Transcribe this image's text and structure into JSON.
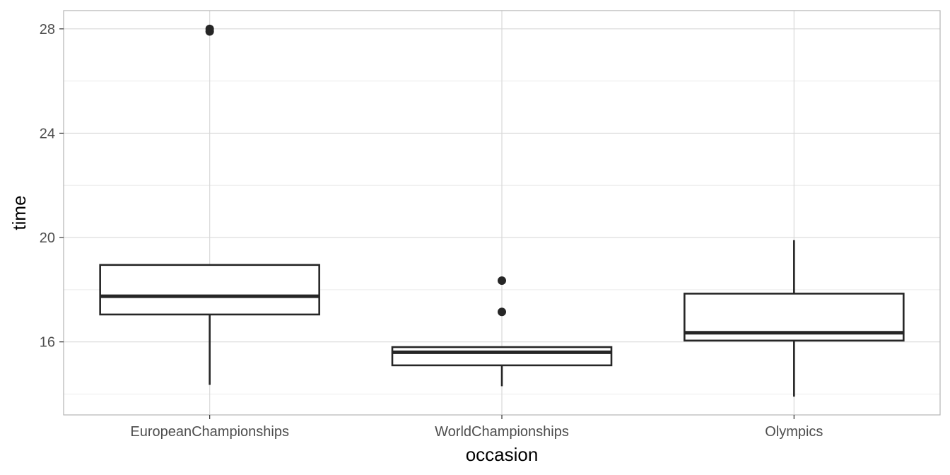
{
  "chart_data": {
    "type": "box",
    "xlabel": "occasion",
    "ylabel": "time",
    "categories": [
      "EuropeanChampionships",
      "WorldChampionships",
      "Olympics"
    ],
    "ylim": [
      13.2,
      28.7
    ],
    "yticks": [
      16,
      20,
      24,
      28
    ],
    "ytick_labels": [
      "16",
      "20",
      "24",
      "28"
    ],
    "grid": true,
    "boxes": [
      {
        "category": "EuropeanChampionships",
        "whisker_low": 14.35,
        "q1": 17.05,
        "median": 17.75,
        "q3": 18.95,
        "whisker_high": 18.95,
        "outliers": [
          27.9,
          28.0
        ]
      },
      {
        "category": "WorldChampionships",
        "whisker_low": 14.3,
        "q1": 15.1,
        "median": 15.6,
        "q3": 15.8,
        "whisker_high": 15.8,
        "outliers": [
          17.15,
          18.35
        ]
      },
      {
        "category": "Olympics",
        "whisker_low": 13.9,
        "q1": 16.05,
        "median": 16.35,
        "q3": 17.85,
        "whisker_high": 19.9,
        "outliers": []
      }
    ],
    "colors": {
      "box_stroke": "#262626",
      "box_fill": "#ffffff",
      "grid_major": "#d9d9d9",
      "grid_minor": "#ececec",
      "panel_border": "#b3b3b3"
    }
  }
}
